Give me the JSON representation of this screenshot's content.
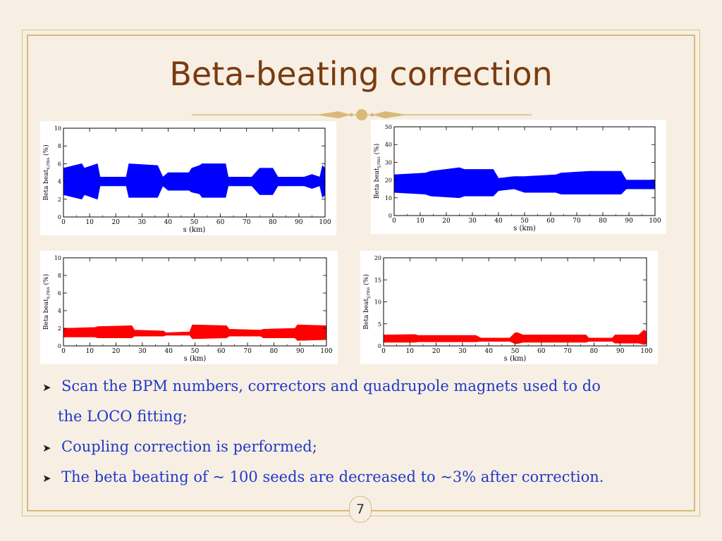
{
  "slide": {
    "title": "Beta-beating  correction",
    "page_number": "7",
    "bullets": [
      "Scan the BPM numbers, correctors and quadrupole magnets used to do",
      "the LOCO fitting;",
      "Coupling correction is performed;",
      "The beta beating of ~ 100 seeds are decreased to ~3% after correction."
    ],
    "colors": {
      "title": "#7a3b10",
      "text": "#1f39c9",
      "frame": "#d9b979",
      "before": "#0000ff",
      "after": "#ff0000"
    }
  },
  "chart_data": [
    {
      "type": "area",
      "ylabel_main": "Beta beat",
      "ylabel_sub": "x,rms",
      "ylabel_unit": " (%)",
      "xlabel": "s (km)",
      "xlim": [
        0,
        100
      ],
      "ylim": [
        0,
        10
      ],
      "xticks": [
        0,
        10,
        20,
        30,
        40,
        50,
        60,
        70,
        80,
        90,
        100
      ],
      "yticks": [
        0,
        2,
        4,
        6,
        8,
        10
      ],
      "color": "#0000ff",
      "x": [
        0,
        7,
        8,
        13,
        14,
        20,
        24,
        25,
        36,
        38,
        40,
        48,
        49,
        52,
        53,
        62,
        63,
        72,
        75,
        80,
        82,
        92,
        95,
        98,
        99,
        100
      ],
      "upper": [
        5.5,
        6,
        5.5,
        6,
        4.5,
        4.5,
        4.5,
        6,
        5.8,
        4.5,
        5,
        5,
        5.5,
        5.8,
        6,
        6,
        4.5,
        4.5,
        5.5,
        5.5,
        4.5,
        4.5,
        4.8,
        4.5,
        5.8,
        5.5
      ],
      "lower": [
        2.5,
        2,
        2.5,
        2,
        3.5,
        3.5,
        3.5,
        2.2,
        2.2,
        3.5,
        3,
        3,
        2.8,
        2.6,
        2.2,
        2.2,
        3.5,
        3.5,
        2.5,
        2.5,
        3.5,
        3.5,
        3.2,
        3.5,
        2.2,
        2.5
      ]
    },
    {
      "type": "area",
      "ylabel_main": "Beta beat",
      "ylabel_sub": "y,rms",
      "ylabel_unit": " (%)",
      "xlabel": "s (km)",
      "xlim": [
        0,
        100
      ],
      "ylim": [
        0,
        50
      ],
      "xticks": [
        0,
        10,
        20,
        30,
        40,
        50,
        60,
        70,
        80,
        90,
        100
      ],
      "yticks": [
        0,
        10,
        20,
        30,
        40,
        50
      ],
      "color": "#0000ff",
      "x": [
        0,
        12,
        14,
        25,
        27,
        38,
        40,
        46,
        50,
        62,
        64,
        75,
        77,
        87,
        89,
        100
      ],
      "upper": [
        23,
        24,
        25,
        27,
        26,
        26,
        21,
        22,
        22,
        23,
        24,
        25,
        25,
        25,
        20,
        20
      ],
      "lower": [
        13,
        12,
        11,
        10,
        11,
        11,
        14,
        15,
        13,
        13,
        12,
        12,
        12,
        12,
        15,
        15
      ]
    },
    {
      "type": "area",
      "ylabel_main": "Beta beat",
      "ylabel_sub": "x,rms",
      "ylabel_unit": " (%)",
      "xlabel": "s (km)",
      "xlim": [
        0,
        100
      ],
      "ylim": [
        0,
        10
      ],
      "xticks": [
        0,
        10,
        20,
        30,
        40,
        50,
        60,
        70,
        80,
        90,
        100
      ],
      "yticks": [
        0,
        2,
        4,
        6,
        8,
        10
      ],
      "color": "#ff0000",
      "x": [
        0,
        12,
        13,
        26,
        27,
        38,
        39,
        48,
        49,
        62,
        63,
        75,
        76,
        88,
        89,
        100
      ],
      "upper": [
        2.0,
        2.1,
        2.2,
        2.3,
        1.8,
        1.7,
        1.5,
        1.6,
        2.4,
        2.3,
        1.9,
        1.8,
        1.9,
        2.0,
        2.4,
        2.3
      ],
      "lower": [
        1.0,
        1.0,
        0.9,
        0.9,
        1.1,
        1.1,
        1.2,
        1.2,
        0.8,
        0.9,
        1.1,
        1.1,
        0.9,
        0.9,
        0.6,
        0.7
      ]
    },
    {
      "type": "area",
      "ylabel_main": "Beta beat",
      "ylabel_sub": "y,rms",
      "ylabel_unit": " (%)",
      "xlabel": "s (km)",
      "xlim": [
        0,
        100
      ],
      "ylim": [
        0,
        20
      ],
      "xticks": [
        0,
        10,
        20,
        30,
        40,
        50,
        60,
        70,
        80,
        90,
        100
      ],
      "yticks": [
        0,
        5,
        10,
        15,
        20
      ],
      "color": "#ff0000",
      "x": [
        0,
        12,
        13,
        35,
        37,
        48,
        50,
        51,
        53,
        77,
        78,
        87,
        88,
        97,
        99,
        100
      ],
      "upper": [
        2.5,
        2.6,
        2.4,
        2.4,
        1.8,
        1.8,
        3.0,
        3.0,
        2.5,
        2.5,
        1.8,
        1.8,
        2.5,
        2.5,
        3.6,
        3.2
      ],
      "lower": [
        0.8,
        0.8,
        0.9,
        0.9,
        1.0,
        1.0,
        0.5,
        0.5,
        0.8,
        0.8,
        1.0,
        1.0,
        0.6,
        0.6,
        0.3,
        0.5
      ]
    }
  ]
}
